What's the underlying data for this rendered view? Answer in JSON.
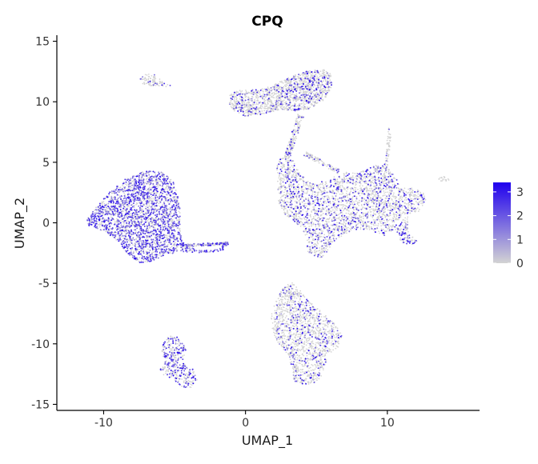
{
  "chart_data": {
    "type": "scatter",
    "title": "CPQ",
    "xlabel": "UMAP_1",
    "ylabel": "UMAP_2",
    "xlim": [
      -13.3,
      16.5
    ],
    "ylim": [
      -15.5,
      15.5
    ],
    "x_ticks": [
      -10,
      0,
      10
    ],
    "x_tick_labels": [
      "-10",
      "0",
      "10"
    ],
    "y_ticks": [
      15,
      10,
      5,
      0,
      -5,
      -10,
      -15
    ],
    "y_tick_labels": [
      "15",
      "10",
      "5",
      "0",
      "-5",
      "-10",
      "-15"
    ],
    "grid": false,
    "legend": {
      "placement": "right",
      "type": "colorbar",
      "range": [
        0,
        3.4
      ],
      "ticks": [
        3,
        2,
        1,
        0
      ],
      "tick_labels": [
        "3",
        "2",
        "1",
        "0"
      ],
      "low_color": "#d3d3d3",
      "high_color": "#1f00ee"
    },
    "clusters": [
      {
        "name": "left-large",
        "shape": "poly",
        "points": [
          [
            -11.3,
            0.1
          ],
          [
            -10.6,
            1.2
          ],
          [
            -9.6,
            2.5
          ],
          [
            -8.4,
            3.7
          ],
          [
            -7.1,
            4.3
          ],
          [
            -5.9,
            4.2
          ],
          [
            -5.1,
            3.5
          ],
          [
            -4.8,
            2.3
          ],
          [
            -4.6,
            1.0
          ],
          [
            -4.6,
            -0.8
          ],
          [
            -4.3,
            -1.9
          ],
          [
            -3.5,
            -2.2
          ],
          [
            -2.3,
            -2.3
          ],
          [
            -1.2,
            -1.6
          ],
          [
            -1.6,
            -2.3
          ],
          [
            -3.1,
            -2.5
          ],
          [
            -4.4,
            -2.4
          ],
          [
            -5.6,
            -2.6
          ],
          [
            -6.6,
            -3.2
          ],
          [
            -7.5,
            -3.3
          ],
          [
            -8.3,
            -2.6
          ],
          [
            -9.0,
            -1.5
          ],
          [
            -10.0,
            -0.7
          ],
          [
            -11.0,
            -0.3
          ]
        ],
        "density": 2600,
        "expr": 0.55
      },
      {
        "name": "top-left-small",
        "shape": "poly",
        "points": [
          [
            -7.5,
            12.0
          ],
          [
            -6.9,
            12.4
          ],
          [
            -6.3,
            12.2
          ],
          [
            -5.8,
            11.6
          ],
          [
            -5.2,
            11.3
          ],
          [
            -6.0,
            11.2
          ],
          [
            -6.8,
            11.3
          ],
          [
            -7.3,
            11.5
          ]
        ],
        "density": 90,
        "expr": 0.15
      },
      {
        "name": "top-center",
        "shape": "poly",
        "points": [
          [
            -1.1,
            10.6
          ],
          [
            -0.5,
            11.0
          ],
          [
            1.0,
            11.0
          ],
          [
            2.0,
            11.4
          ],
          [
            3.0,
            12.0
          ],
          [
            4.2,
            12.5
          ],
          [
            5.5,
            12.7
          ],
          [
            6.0,
            12.3
          ],
          [
            6.1,
            11.3
          ],
          [
            5.6,
            10.2
          ],
          [
            4.5,
            9.4
          ],
          [
            3.5,
            9.2
          ],
          [
            2.5,
            9.4
          ],
          [
            1.5,
            9.0
          ],
          [
            0.0,
            8.8
          ],
          [
            -0.8,
            9.2
          ],
          [
            -1.2,
            9.9
          ]
        ],
        "density": 1500,
        "expr": 0.2
      },
      {
        "name": "center-right",
        "shape": "poly",
        "points": [
          [
            2.2,
            5.0
          ],
          [
            2.6,
            5.4
          ],
          [
            3.4,
            5.2
          ],
          [
            3.8,
            4.1
          ],
          [
            4.6,
            3.3
          ],
          [
            5.8,
            3.5
          ],
          [
            6.9,
            4.2
          ],
          [
            7.9,
            4.1
          ],
          [
            8.7,
            4.5
          ],
          [
            9.3,
            4.8
          ],
          [
            10.1,
            4.6
          ],
          [
            10.6,
            3.7
          ],
          [
            10.9,
            3.0
          ],
          [
            11.6,
            2.9
          ],
          [
            12.5,
            2.6
          ],
          [
            12.7,
            1.9
          ],
          [
            12.3,
            1.0
          ],
          [
            11.4,
            0.4
          ],
          [
            11.5,
            -0.9
          ],
          [
            12.1,
            -1.5
          ],
          [
            11.8,
            -1.9
          ],
          [
            11.0,
            -1.6
          ],
          [
            10.5,
            -0.6
          ],
          [
            9.7,
            -1.1
          ],
          [
            8.8,
            -0.6
          ],
          [
            8.0,
            -0.5
          ],
          [
            7.2,
            -0.8
          ],
          [
            6.5,
            -1.3
          ],
          [
            6.0,
            -2.0
          ],
          [
            5.6,
            -2.6
          ],
          [
            5.2,
            -3.0
          ],
          [
            4.4,
            -2.4
          ],
          [
            4.2,
            -1.1
          ],
          [
            3.9,
            -0.3
          ],
          [
            3.2,
            0.3
          ],
          [
            2.5,
            1.0
          ],
          [
            2.3,
            1.8
          ],
          [
            2.2,
            3.0
          ]
        ],
        "density": 2800,
        "expr": 0.25
      },
      {
        "name": "bottom-center",
        "shape": "poly",
        "points": [
          [
            2.7,
            -5.2
          ],
          [
            3.3,
            -4.9
          ],
          [
            3.8,
            -5.5
          ],
          [
            4.5,
            -6.5
          ],
          [
            5.4,
            -7.4
          ],
          [
            6.3,
            -8.3
          ],
          [
            6.8,
            -9.3
          ],
          [
            6.5,
            -10.4
          ],
          [
            5.8,
            -11.0
          ],
          [
            5.5,
            -12.1
          ],
          [
            5.2,
            -13.1
          ],
          [
            4.3,
            -13.4
          ],
          [
            3.4,
            -13.1
          ],
          [
            3.3,
            -12.2
          ],
          [
            3.0,
            -10.9
          ],
          [
            2.3,
            -10.0
          ],
          [
            1.9,
            -8.9
          ],
          [
            1.8,
            -7.6
          ],
          [
            2.2,
            -6.3
          ]
        ],
        "density": 1400,
        "expr": 0.18
      },
      {
        "name": "bottom-left",
        "shape": "poly",
        "points": [
          [
            -5.9,
            -9.9
          ],
          [
            -5.3,
            -9.3
          ],
          [
            -4.6,
            -9.4
          ],
          [
            -4.2,
            -10.5
          ],
          [
            -4.4,
            -11.5
          ],
          [
            -3.7,
            -12.1
          ],
          [
            -3.4,
            -13.0
          ],
          [
            -3.7,
            -13.6
          ],
          [
            -4.4,
            -13.6
          ],
          [
            -5.1,
            -12.9
          ],
          [
            -5.8,
            -12.6
          ],
          [
            -6.0,
            -12.1
          ],
          [
            -5.6,
            -11.4
          ],
          [
            -6.0,
            -10.7
          ]
        ],
        "density": 380,
        "expr": 0.4
      },
      {
        "name": "right-speck",
        "shape": "poly",
        "points": [
          [
            13.4,
            3.8
          ],
          [
            14.1,
            3.9
          ],
          [
            14.5,
            3.6
          ],
          [
            14.4,
            3.4
          ],
          [
            13.7,
            3.4
          ]
        ],
        "density": 18,
        "expr": 0.05
      },
      {
        "name": "bridge-vertical",
        "shape": "line",
        "from": [
          3.9,
          8.9
        ],
        "to": [
          2.9,
          5.3
        ],
        "width": 0.45,
        "density": 180,
        "expr": 0.2
      },
      {
        "name": "bridge-right",
        "shape": "line",
        "from": [
          10.2,
          7.8
        ],
        "to": [
          9.9,
          4.6
        ],
        "width": 0.25,
        "density": 60,
        "expr": 0.1
      },
      {
        "name": "bridge-mid",
        "shape": "line",
        "from": [
          4.2,
          5.7
        ],
        "to": [
          6.6,
          4.2
        ],
        "width": 0.35,
        "density": 110,
        "expr": 0.2
      },
      {
        "name": "left-tail",
        "shape": "line",
        "from": [
          -4.6,
          -1.9
        ],
        "to": [
          -1.2,
          -1.7
        ],
        "width": 0.22,
        "density": 160,
        "expr": 0.45
      }
    ]
  }
}
